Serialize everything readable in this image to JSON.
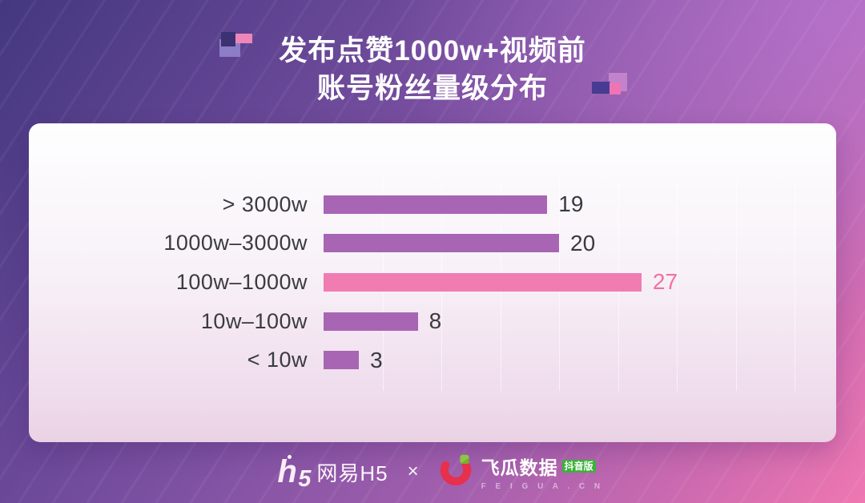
{
  "title": {
    "line1": "发布点赞1000w+视频前",
    "line2": "账号粉丝量级分布"
  },
  "chart_data": {
    "type": "bar",
    "orientation": "horizontal",
    "categories": [
      "> 3000w",
      "1000w–3000w",
      "100w–1000w",
      "10w–100w",
      "< 10w"
    ],
    "values": [
      19,
      20,
      27,
      8,
      3
    ],
    "highlight_index": 2,
    "title": "发布点赞1000w+视频前 账号粉丝量级分布",
    "xlabel": "",
    "ylabel": "账号粉丝量级",
    "xlim": [
      0,
      40
    ],
    "grid": "faint-vertical",
    "gridline_interval": 5,
    "bar_color": "#a765b4",
    "highlight_bar_color": "#f07cb2",
    "value_color": "#3a3a3e",
    "highlight_value_color": "#f1719f"
  },
  "footer": {
    "netease_mark_h": "h",
    "netease_mark_5": "5",
    "netease_label": "网易H5",
    "separator": "×",
    "feigua_name": "飞瓜数据",
    "feigua_badge": "抖音版",
    "feigua_domain": "F E I G U A . C N"
  },
  "colors": {
    "background_top_left": "#44387f",
    "background_bottom_right": "#ef77b1",
    "card_top": "#fefeff",
    "card_bottom": "#e9d2e4",
    "title_text": "#ffffff",
    "category_text": "#3b3b40",
    "feigua_red": "#e6304d",
    "feigua_green": "#8dc63f",
    "badge_green": "#3bb13a"
  }
}
